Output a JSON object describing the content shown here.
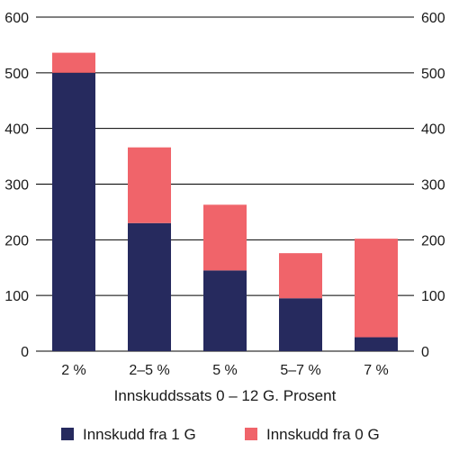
{
  "chart_data": {
    "type": "bar",
    "stacked": true,
    "categories": [
      "2 %",
      "2–5 %",
      "5 %",
      "5–7 %",
      "7 %"
    ],
    "series": [
      {
        "name": "Innskudd fra 1 G",
        "values": [
          500,
          230,
          145,
          95,
          25
        ]
      },
      {
        "name": "Innskudd fra 0 G",
        "values": [
          36,
          136,
          118,
          81,
          177
        ]
      }
    ],
    "totals": [
      536,
      366,
      263,
      176,
      202
    ],
    "xlabel": "Innskuddssats 0 – 12 G. Prosent",
    "ylabel": "",
    "ylim": [
      0,
      600
    ],
    "yticks": [
      0,
      100,
      200,
      300,
      400,
      500,
      600
    ],
    "grid": true,
    "legend_position": "bottom",
    "colors": {
      "Innskudd fra 1 G": "#262a5e",
      "Innskudd fra 0 G": "#f0646a",
      "grid": "#000000"
    }
  }
}
